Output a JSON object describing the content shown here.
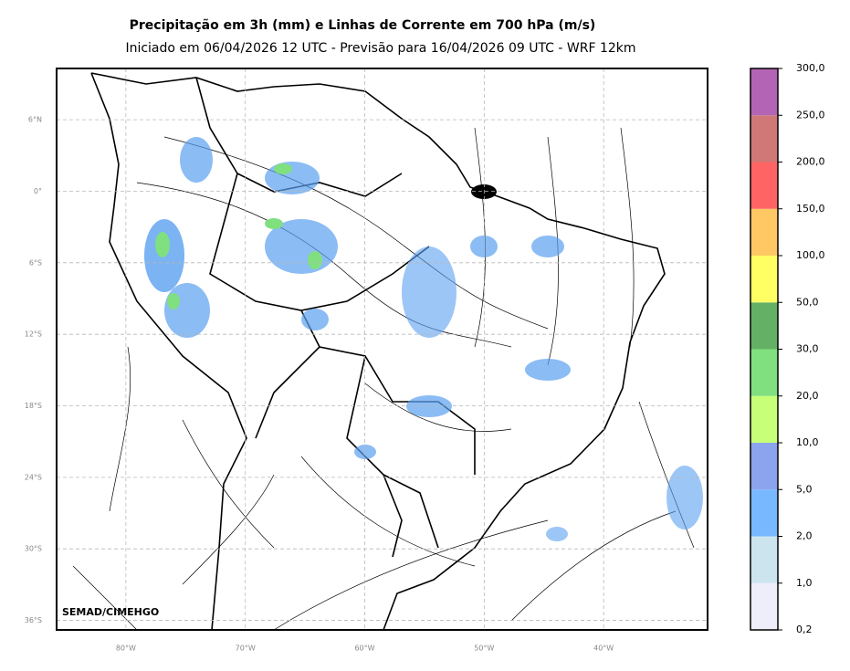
{
  "header": {
    "title": "Precipitação em 3h (mm) e Linhas de Corrente em 700 hPa (m/s)",
    "subtitle": "Iniciado em 06/04/2026 12 UTC - Previsão para 16/04/2026 09 UTC - WRF 12km"
  },
  "map": {
    "lonlim": [
      -85.8,
      -31.3
    ],
    "latlim": [
      -36.8,
      10.3
    ],
    "grid": true,
    "lonticks": [
      {
        "value": -80,
        "label": "80°W"
      },
      {
        "value": -70,
        "label": "70°W"
      },
      {
        "value": -60,
        "label": "60°W"
      },
      {
        "value": -50,
        "label": "50°W"
      },
      {
        "value": -40,
        "label": "40°W"
      }
    ],
    "latticks": [
      {
        "value": 6,
        "label": "6°N"
      },
      {
        "value": 0,
        "label": "0°"
      },
      {
        "value": -6,
        "label": "6°S"
      },
      {
        "value": -12,
        "label": "12°S"
      },
      {
        "value": -18,
        "label": "18°S"
      },
      {
        "value": -24,
        "label": "24°S"
      },
      {
        "value": -30,
        "label": "30°S"
      },
      {
        "value": -36,
        "label": "36°S"
      }
    ],
    "credit": "SEMAD/CIMEHGO"
  },
  "colorbar": {
    "ticks": [
      {
        "value": 0.2,
        "label": "0,2"
      },
      {
        "value": 1,
        "label": "1,0"
      },
      {
        "value": 2,
        "label": "2,0"
      },
      {
        "value": 5,
        "label": "5,0"
      },
      {
        "value": 10,
        "label": "10,0"
      },
      {
        "value": 20,
        "label": "20,0"
      },
      {
        "value": 30,
        "label": "30,0"
      },
      {
        "value": 50,
        "label": "50,0"
      },
      {
        "value": 100,
        "label": "100,0"
      },
      {
        "value": 150,
        "label": "150,0"
      },
      {
        "value": 200,
        "label": "200,0"
      },
      {
        "value": 250,
        "label": "250,0"
      },
      {
        "value": 300,
        "label": "300,0"
      }
    ],
    "colors": [
      "#eeeefa",
      "#cce4ee",
      "#78b8ff",
      "#8ca4ee",
      "#c8ff78",
      "#80e080",
      "#64b064",
      "#ffff64",
      "#ffc864",
      "#ff6464",
      "#d07878",
      "#b464b4"
    ]
  }
}
